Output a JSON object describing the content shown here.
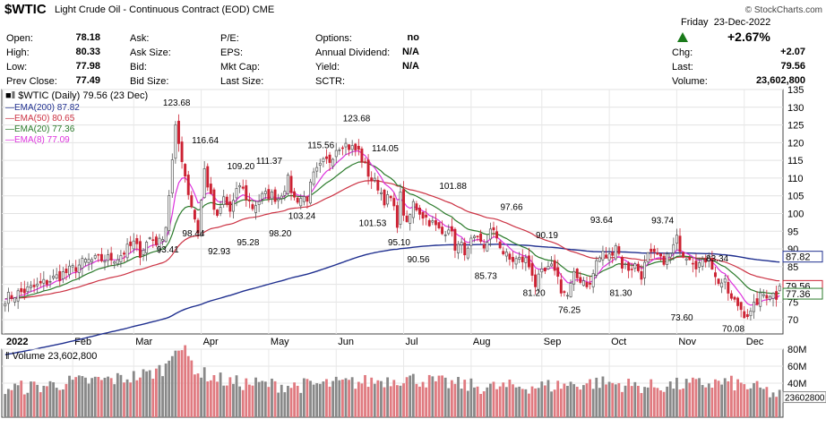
{
  "header": {
    "ticker": "$WTIC",
    "description": "Light Crude Oil - Continuous Contract (EOD)",
    "exchange": "CME",
    "brand": "© StockCharts.com",
    "day": "Friday",
    "date": "23-Dec-2022",
    "pct_change": "+2.67%",
    "stats_col1": [
      {
        "label": "Open:",
        "value": "78.18"
      },
      {
        "label": "High:",
        "value": "80.33"
      },
      {
        "label": "Low:",
        "value": "77.98"
      },
      {
        "label": "Prev Close:",
        "value": "77.49"
      }
    ],
    "stats_col2": [
      "Ask:",
      "Ask Size:",
      "Bid:",
      "Bid Size:"
    ],
    "stats_col3": [
      "P/E:",
      "EPS:",
      "Mkt Cap:",
      "Last Size:"
    ],
    "stats_col4": [
      {
        "label": "Options:",
        "value": "no"
      },
      {
        "label": "Annual Dividend:",
        "value": "N/A"
      },
      {
        "label": "Yield:",
        "value": "N/A"
      },
      {
        "label": "SCTR:",
        "value": ""
      }
    ],
    "stats_col5": [
      {
        "label": "Chg:",
        "value": "+2.07"
      },
      {
        "label": "Last:",
        "value": "79.56"
      },
      {
        "label": "Volume:",
        "value": "23,602,800"
      }
    ]
  },
  "colors": {
    "up": "#555555",
    "down": "#cc2233",
    "ema200": "#1f2f8f",
    "ema50": "#cc3344",
    "ema20": "#2a7a2a",
    "ema8": "#dd33dd",
    "vol_up": "#888888",
    "vol_down": "#e07a80"
  },
  "chart_data": [
    {
      "type": "candlestick",
      "title": "$WTIC (Daily) 79.56 (23 Dec)",
      "ylim": [
        66,
        135
      ],
      "y_ticks": [
        70,
        75,
        80,
        85,
        90,
        95,
        100,
        105,
        110,
        115,
        120,
        125,
        130,
        135
      ],
      "x_ticks": [
        "2022",
        "Feb",
        "Mar",
        "Apr",
        "May",
        "Jun",
        "Jul",
        "Aug",
        "Sep",
        "Oct",
        "Nov",
        "Dec"
      ],
      "legend": [
        {
          "name": "EMA(200) 87.82",
          "color": "ema200"
        },
        {
          "name": "EMA(50) 80.65",
          "color": "ema50"
        },
        {
          "name": "EMA(20) 77.36",
          "color": "ema20"
        },
        {
          "name": "EMA(8) 77.09",
          "color": "ema8"
        }
      ],
      "legend_position": "top-left",
      "price_path": [
        [
          0,
          76.1
        ],
        [
          10,
          79.5
        ],
        [
          20,
          83.8
        ],
        [
          25,
          86.5
        ],
        [
          35,
          87.6
        ],
        [
          40,
          91.5
        ],
        [
          42,
          89.0
        ],
        [
          45,
          93.1
        ],
        [
          48,
          91.7
        ],
        [
          50,
          96.5
        ],
        [
          53,
          123.7
        ],
        [
          55,
          115.7
        ],
        [
          57,
          106.0
        ],
        [
          60,
          95.0
        ],
        [
          62,
          112.3
        ],
        [
          64,
          104.3
        ],
        [
          66,
          98.3
        ],
        [
          68,
          104.3
        ],
        [
          70,
          100.6
        ],
        [
          73,
          108.2
        ],
        [
          75,
          104.7
        ],
        [
          77,
          101.8
        ],
        [
          80,
          104.7
        ],
        [
          82,
          105.4
        ],
        [
          85,
          104.4
        ],
        [
          88,
          109.3
        ],
        [
          90,
          104.2
        ],
        [
          94,
          104.6
        ],
        [
          96,
          110.5
        ],
        [
          99,
          114.2
        ],
        [
          101,
          115.1
        ],
        [
          103,
          118.6
        ],
        [
          105,
          120.0
        ],
        [
          107,
          118.9
        ],
        [
          110,
          117.5
        ],
        [
          112,
          113.1
        ],
        [
          114,
          109.6
        ],
        [
          116,
          107.8
        ],
        [
          118,
          104.0
        ],
        [
          120,
          104.0
        ],
        [
          122,
          97.6
        ],
        [
          123,
          104.8
        ],
        [
          125,
          96.2
        ],
        [
          127,
          102.8
        ],
        [
          130,
          99.6
        ],
        [
          133,
          97.1
        ],
        [
          136,
          94.3
        ],
        [
          138,
          96.6
        ],
        [
          140,
          90.8
        ],
        [
          142,
          90.6
        ],
        [
          144,
          89.0
        ],
        [
          145,
          91.9
        ],
        [
          147,
          92.1
        ],
        [
          149,
          90.5
        ],
        [
          151,
          94.9
        ],
        [
          153,
          93.4
        ],
        [
          155,
          88.9
        ],
        [
          157,
          86.9
        ],
        [
          160,
          86.9
        ],
        [
          162,
          86.8
        ],
        [
          164,
          83.5
        ],
        [
          165,
          79.9
        ],
        [
          167,
          82.8
        ],
        [
          169,
          83.9
        ],
        [
          171,
          84.9
        ],
        [
          173,
          78.7
        ],
        [
          175,
          76.7
        ],
        [
          177,
          82.2
        ],
        [
          180,
          81.2
        ],
        [
          182,
          79.5
        ],
        [
          184,
          86.5
        ],
        [
          186,
          88.5
        ],
        [
          188,
          87.8
        ],
        [
          190,
          91.6
        ],
        [
          192,
          85.5
        ],
        [
          194,
          84.6
        ],
        [
          196,
          85.3
        ],
        [
          198,
          82.8
        ],
        [
          200,
          87.9
        ],
        [
          203,
          87.9
        ],
        [
          204,
          86.5
        ],
        [
          207,
          88.4
        ],
        [
          209,
          92.6
        ],
        [
          211,
          88.9
        ],
        [
          213,
          88.2
        ],
        [
          215,
          85.9
        ],
        [
          217,
          85.6
        ],
        [
          219,
          88.9
        ],
        [
          221,
          81.6
        ],
        [
          224,
          80.0
        ],
        [
          226,
          75.5
        ],
        [
          228,
          74.3
        ],
        [
          230,
          72.0
        ],
        [
          232,
          71.5
        ],
        [
          234,
          75.4
        ],
        [
          236,
          77.1
        ],
        [
          238,
          77.5
        ],
        [
          240,
          76.8
        ],
        [
          241,
          79.6
        ]
      ],
      "annotations": [
        {
          "text": "123.68",
          "x": 53,
          "y": 130.5
        },
        {
          "text": "116.64",
          "x": 62,
          "y": 119.8
        },
        {
          "text": "109.20",
          "x": 73,
          "y": 112.5
        },
        {
          "text": "111.37",
          "x": 82,
          "y": 114.0
        },
        {
          "text": "115.56",
          "x": 98,
          "y": 118.5
        },
        {
          "text": "123.68",
          "x": 109,
          "y": 126.0
        },
        {
          "text": "114.05",
          "x": 118,
          "y": 117.5
        },
        {
          "text": "101.88",
          "x": 139,
          "y": 107.0
        },
        {
          "text": "97.66",
          "x": 158,
          "y": 101.0
        },
        {
          "text": "93.64",
          "x": 186,
          "y": 97.3
        },
        {
          "text": "90.19",
          "x": 169,
          "y": 93.0
        },
        {
          "text": "93.74",
          "x": 205,
          "y": 97.2
        },
        {
          "text": "83.34",
          "x": 222,
          "y": 86.5
        },
        {
          "text": "93.41",
          "x": 51,
          "y": 89.0
        },
        {
          "text": "98.44",
          "x": 59,
          "y": 93.5
        },
        {
          "text": "92.93",
          "x": 67,
          "y": 88.5
        },
        {
          "text": "95.28",
          "x": 76,
          "y": 91.0
        },
        {
          "text": "98.20",
          "x": 86,
          "y": 93.5
        },
        {
          "text": "103.24",
          "x": 92,
          "y": 98.5
        },
        {
          "text": "101.53",
          "x": 114,
          "y": 96.5
        },
        {
          "text": "95.10",
          "x": 123,
          "y": 91.0
        },
        {
          "text": "90.56",
          "x": 129,
          "y": 86.2
        },
        {
          "text": "85.73",
          "x": 150,
          "y": 81.5
        },
        {
          "text": "81.20",
          "x": 165,
          "y": 76.8
        },
        {
          "text": "76.25",
          "x": 176,
          "y": 72.0
        },
        {
          "text": "81.30",
          "x": 192,
          "y": 76.8
        },
        {
          "text": "73.60",
          "x": 211,
          "y": 69.8
        },
        {
          "text": "70.08",
          "x": 227,
          "y": 66.6
        }
      ],
      "right_markers": [
        {
          "text": "87.82",
          "value": 87.82,
          "color": "ema200"
        },
        {
          "text": "79.56",
          "value": 79.56,
          "color": "down"
        },
        {
          "text": "77.36",
          "value": 77.36,
          "color": "ema20"
        }
      ]
    },
    {
      "type": "bar",
      "title": "Volume 23,602,800",
      "ylim": [
        0,
        80000000
      ],
      "y_ticks": [
        {
          "label": "40M",
          "value": 40000000
        },
        {
          "label": "60M",
          "value": 60000000
        },
        {
          "label": "80M",
          "value": 80000000
        }
      ],
      "last_value_label": "23602800",
      "volume_path": [
        [
          0,
          33
        ],
        [
          10,
          35
        ],
        [
          20,
          40
        ],
        [
          35,
          44
        ],
        [
          45,
          50
        ],
        [
          50,
          58
        ],
        [
          53,
          86
        ],
        [
          56,
          75
        ],
        [
          60,
          52
        ],
        [
          70,
          40
        ],
        [
          90,
          36
        ],
        [
          110,
          40
        ],
        [
          125,
          45
        ],
        [
          135,
          40
        ],
        [
          150,
          34
        ],
        [
          170,
          36
        ],
        [
          185,
          40
        ],
        [
          200,
          35
        ],
        [
          215,
          38
        ],
        [
          225,
          40
        ],
        [
          235,
          32
        ],
        [
          241,
          24
        ]
      ]
    }
  ]
}
